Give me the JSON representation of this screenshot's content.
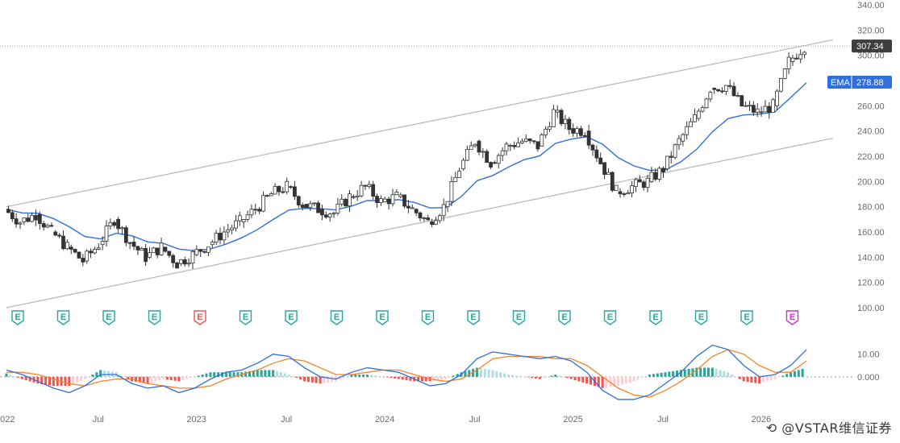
{
  "chart_data": [
    {
      "type": "candlestick",
      "price_axis": {
        "ticks": [
          "340.00",
          "320.00",
          "300.00",
          "260.00",
          "240.00",
          "220.00",
          "200.00",
          "180.00",
          "160.00",
          "140.00",
          "120.00",
          "100.00"
        ],
        "ylim": [
          100,
          340
        ]
      },
      "time_axis": {
        "labels": [
          "2022",
          "Jul",
          "2023",
          "Jul",
          "2024",
          "Jul",
          "2025",
          "Jul",
          "2026"
        ],
        "xlim": [
          "2022-01",
          "2026-04"
        ]
      },
      "last_price": {
        "label": "307.34",
        "value": 307.34,
        "color": "#3d3d3d"
      },
      "ema": {
        "name": "EMA",
        "label": "278.88",
        "value": 278.88,
        "color": "#2f6fdf"
      },
      "channel": {
        "upper": [
          {
            "x": "2022-01",
            "y": 180
          },
          {
            "x": "2026-04",
            "y": 308
          }
        ],
        "lower": [
          {
            "x": "2022-01",
            "y": 100
          },
          {
            "x": "2026-04",
            "y": 230
          }
        ],
        "color": "#b5b5b5"
      },
      "close": [
        {
          "x": "2022-01",
          "y": 178
        },
        {
          "x": "2022-02",
          "y": 168
        },
        {
          "x": "2022-03",
          "y": 174
        },
        {
          "x": "2022-04",
          "y": 160
        },
        {
          "x": "2022-05",
          "y": 148
        },
        {
          "x": "2022-06",
          "y": 137
        },
        {
          "x": "2022-07",
          "y": 150
        },
        {
          "x": "2022-08",
          "y": 170
        },
        {
          "x": "2022-09",
          "y": 152
        },
        {
          "x": "2022-10",
          "y": 140
        },
        {
          "x": "2022-11",
          "y": 148
        },
        {
          "x": "2022-12",
          "y": 135
        },
        {
          "x": "2023-01",
          "y": 142
        },
        {
          "x": "2023-02",
          "y": 150
        },
        {
          "x": "2023-03",
          "y": 160
        },
        {
          "x": "2023-04",
          "y": 168
        },
        {
          "x": "2023-05",
          "y": 178
        },
        {
          "x": "2023-06",
          "y": 190
        },
        {
          "x": "2023-07",
          "y": 196
        },
        {
          "x": "2023-08",
          "y": 182
        },
        {
          "x": "2023-09",
          "y": 178
        },
        {
          "x": "2023-10",
          "y": 175
        },
        {
          "x": "2023-11",
          "y": 188
        },
        {
          "x": "2023-12",
          "y": 196
        },
        {
          "x": "2024-01",
          "y": 184
        },
        {
          "x": "2024-02",
          "y": 188
        },
        {
          "x": "2024-03",
          "y": 178
        },
        {
          "x": "2024-04",
          "y": 168
        },
        {
          "x": "2024-05",
          "y": 180
        },
        {
          "x": "2024-06",
          "y": 210
        },
        {
          "x": "2024-07",
          "y": 232
        },
        {
          "x": "2024-08",
          "y": 215
        },
        {
          "x": "2024-09",
          "y": 228
        },
        {
          "x": "2024-10",
          "y": 232
        },
        {
          "x": "2024-11",
          "y": 228
        },
        {
          "x": "2024-12",
          "y": 255
        },
        {
          "x": "2025-01",
          "y": 242
        },
        {
          "x": "2025-02",
          "y": 240
        },
        {
          "x": "2025-03",
          "y": 215
        },
        {
          "x": "2025-04",
          "y": 192
        },
        {
          "x": "2025-05",
          "y": 196
        },
        {
          "x": "2025-06",
          "y": 200
        },
        {
          "x": "2025-07",
          "y": 210
        },
        {
          "x": "2025-08",
          "y": 232
        },
        {
          "x": "2025-09",
          "y": 250
        },
        {
          "x": "2025-10",
          "y": 274
        },
        {
          "x": "2025-11",
          "y": 276
        },
        {
          "x": "2025-12",
          "y": 260
        },
        {
          "x": "2026-01",
          "y": 255
        },
        {
          "x": "2026-02",
          "y": 260
        },
        {
          "x": "2026-03",
          "y": 295
        },
        {
          "x": "2026-04",
          "y": 307.34
        }
      ]
    },
    {
      "type": "macd",
      "ticks": [
        "10.00",
        "0.000"
      ],
      "ylim": [
        -15,
        17
      ],
      "line_color": "#2f6fdf",
      "signal_color": "#f5832a",
      "pos_colors": [
        "#26a69a",
        "#b2dfdb"
      ],
      "neg_colors": [
        "#ef5350",
        "#ffcdd2"
      ],
      "series": [
        {
          "x": "2022-01",
          "macd": 3,
          "signal": 2,
          "hist": 1.5
        },
        {
          "x": "2022-02",
          "macd": 1,
          "signal": 2,
          "hist": -1
        },
        {
          "x": "2022-03",
          "macd": -2,
          "signal": 1,
          "hist": -3
        },
        {
          "x": "2022-04",
          "macd": -5,
          "signal": -1,
          "hist": -4
        },
        {
          "x": "2022-05",
          "macd": -7,
          "signal": -3,
          "hist": -4
        },
        {
          "x": "2022-06",
          "macd": -4,
          "signal": -4,
          "hist": -1
        },
        {
          "x": "2022-07",
          "macd": 1,
          "signal": -2,
          "hist": 3
        },
        {
          "x": "2022-08",
          "macd": 1,
          "signal": -1,
          "hist": 2
        },
        {
          "x": "2022-09",
          "macd": -3,
          "signal": -1,
          "hist": -2
        },
        {
          "x": "2022-10",
          "macd": -5,
          "signal": -3,
          "hist": -3
        },
        {
          "x": "2022-11",
          "macd": -4,
          "signal": -4,
          "hist": -1
        },
        {
          "x": "2022-12",
          "macd": -7,
          "signal": -5,
          "hist": -2
        },
        {
          "x": "2023-01",
          "macd": -5,
          "signal": -5,
          "hist": 0
        },
        {
          "x": "2023-02",
          "macd": -1,
          "signal": -4,
          "hist": 2
        },
        {
          "x": "2023-03",
          "macd": 2,
          "signal": -1,
          "hist": 2
        },
        {
          "x": "2023-04",
          "macd": 3,
          "signal": 1,
          "hist": 2
        },
        {
          "x": "2023-05",
          "macd": 6,
          "signal": 3,
          "hist": 3
        },
        {
          "x": "2023-06",
          "macd": 10,
          "signal": 6,
          "hist": 3
        },
        {
          "x": "2023-07",
          "macd": 9,
          "signal": 8,
          "hist": 1
        },
        {
          "x": "2023-08",
          "macd": 4,
          "signal": 7,
          "hist": -2
        },
        {
          "x": "2023-09",
          "macd": 0,
          "signal": 4,
          "hist": -3
        },
        {
          "x": "2023-10",
          "macd": -1,
          "signal": 1,
          "hist": -2
        },
        {
          "x": "2023-11",
          "macd": 2,
          "signal": 1,
          "hist": 1
        },
        {
          "x": "2023-12",
          "macd": 4,
          "signal": 2,
          "hist": 1
        },
        {
          "x": "2024-01",
          "macd": 3,
          "signal": 3,
          "hist": 0
        },
        {
          "x": "2024-02",
          "macd": 2,
          "signal": 3,
          "hist": -1
        },
        {
          "x": "2024-03",
          "macd": -1,
          "signal": 1,
          "hist": -2
        },
        {
          "x": "2024-04",
          "macd": -4,
          "signal": -1,
          "hist": -2
        },
        {
          "x": "2024-05",
          "macd": -3,
          "signal": -2,
          "hist": -1
        },
        {
          "x": "2024-06",
          "macd": 1,
          "signal": -1,
          "hist": 2
        },
        {
          "x": "2024-07",
          "macd": 8,
          "signal": 3,
          "hist": 4
        },
        {
          "x": "2024-08",
          "macd": 11,
          "signal": 8,
          "hist": 3
        },
        {
          "x": "2024-09",
          "macd": 10,
          "signal": 9,
          "hist": 1
        },
        {
          "x": "2024-10",
          "macd": 9,
          "signal": 9,
          "hist": 0
        },
        {
          "x": "2024-11",
          "macd": 8,
          "signal": 9,
          "hist": -1
        },
        {
          "x": "2024-12",
          "macd": 9,
          "signal": 8,
          "hist": 1
        },
        {
          "x": "2025-01",
          "macd": 7,
          "signal": 8,
          "hist": -1
        },
        {
          "x": "2025-02",
          "macd": 2,
          "signal": 5,
          "hist": -3
        },
        {
          "x": "2025-03",
          "macd": -6,
          "signal": 0,
          "hist": -5
        },
        {
          "x": "2025-04",
          "macd": -10,
          "signal": -5,
          "hist": -4
        },
        {
          "x": "2025-05",
          "macd": -10,
          "signal": -8,
          "hist": -2
        },
        {
          "x": "2025-06",
          "macd": -8,
          "signal": -9,
          "hist": 1
        },
        {
          "x": "2025-07",
          "macd": -3,
          "signal": -6,
          "hist": 2
        },
        {
          "x": "2025-08",
          "macd": 2,
          "signal": -2,
          "hist": 3
        },
        {
          "x": "2025-09",
          "macd": 9,
          "signal": 3,
          "hist": 4
        },
        {
          "x": "2025-10",
          "macd": 14,
          "signal": 9,
          "hist": 4
        },
        {
          "x": "2025-11",
          "macd": 12,
          "signal": 12,
          "hist": 2
        },
        {
          "x": "2025-12",
          "macd": 5,
          "signal": 10,
          "hist": -2
        },
        {
          "x": "2026-01",
          "macd": 0,
          "signal": 5,
          "hist": -3
        },
        {
          "x": "2026-02",
          "macd": 1,
          "signal": 2,
          "hist": -1
        },
        {
          "x": "2026-03",
          "macd": 5,
          "signal": 2,
          "hist": 2
        },
        {
          "x": "2026-04",
          "macd": 12,
          "signal": 7,
          "hist": 4
        }
      ]
    }
  ],
  "earnings_markers": [
    {
      "glyph": "E",
      "kind": "normal"
    },
    {
      "glyph": "E",
      "kind": "normal"
    },
    {
      "glyph": "E",
      "kind": "normal"
    },
    {
      "glyph": "E",
      "kind": "normal"
    },
    {
      "glyph": "E",
      "kind": "miss"
    },
    {
      "glyph": "E",
      "kind": "normal"
    },
    {
      "glyph": "E",
      "kind": "normal"
    },
    {
      "glyph": "E",
      "kind": "normal"
    },
    {
      "glyph": "E",
      "kind": "normal"
    },
    {
      "glyph": "E",
      "kind": "normal"
    },
    {
      "glyph": "E",
      "kind": "normal"
    },
    {
      "glyph": "E",
      "kind": "normal"
    },
    {
      "glyph": "E",
      "kind": "normal"
    },
    {
      "glyph": "E",
      "kind": "normal"
    },
    {
      "glyph": "E",
      "kind": "normal"
    },
    {
      "glyph": "E",
      "kind": "normal"
    },
    {
      "glyph": "E",
      "kind": "normal"
    },
    {
      "glyph": "E",
      "kind": "upcoming"
    }
  ],
  "earnings_colors": {
    "normal": "#26a69a",
    "miss": "#ef5350",
    "upcoming": "#cc33cc"
  },
  "watermark": "@VSTAR维信证券"
}
